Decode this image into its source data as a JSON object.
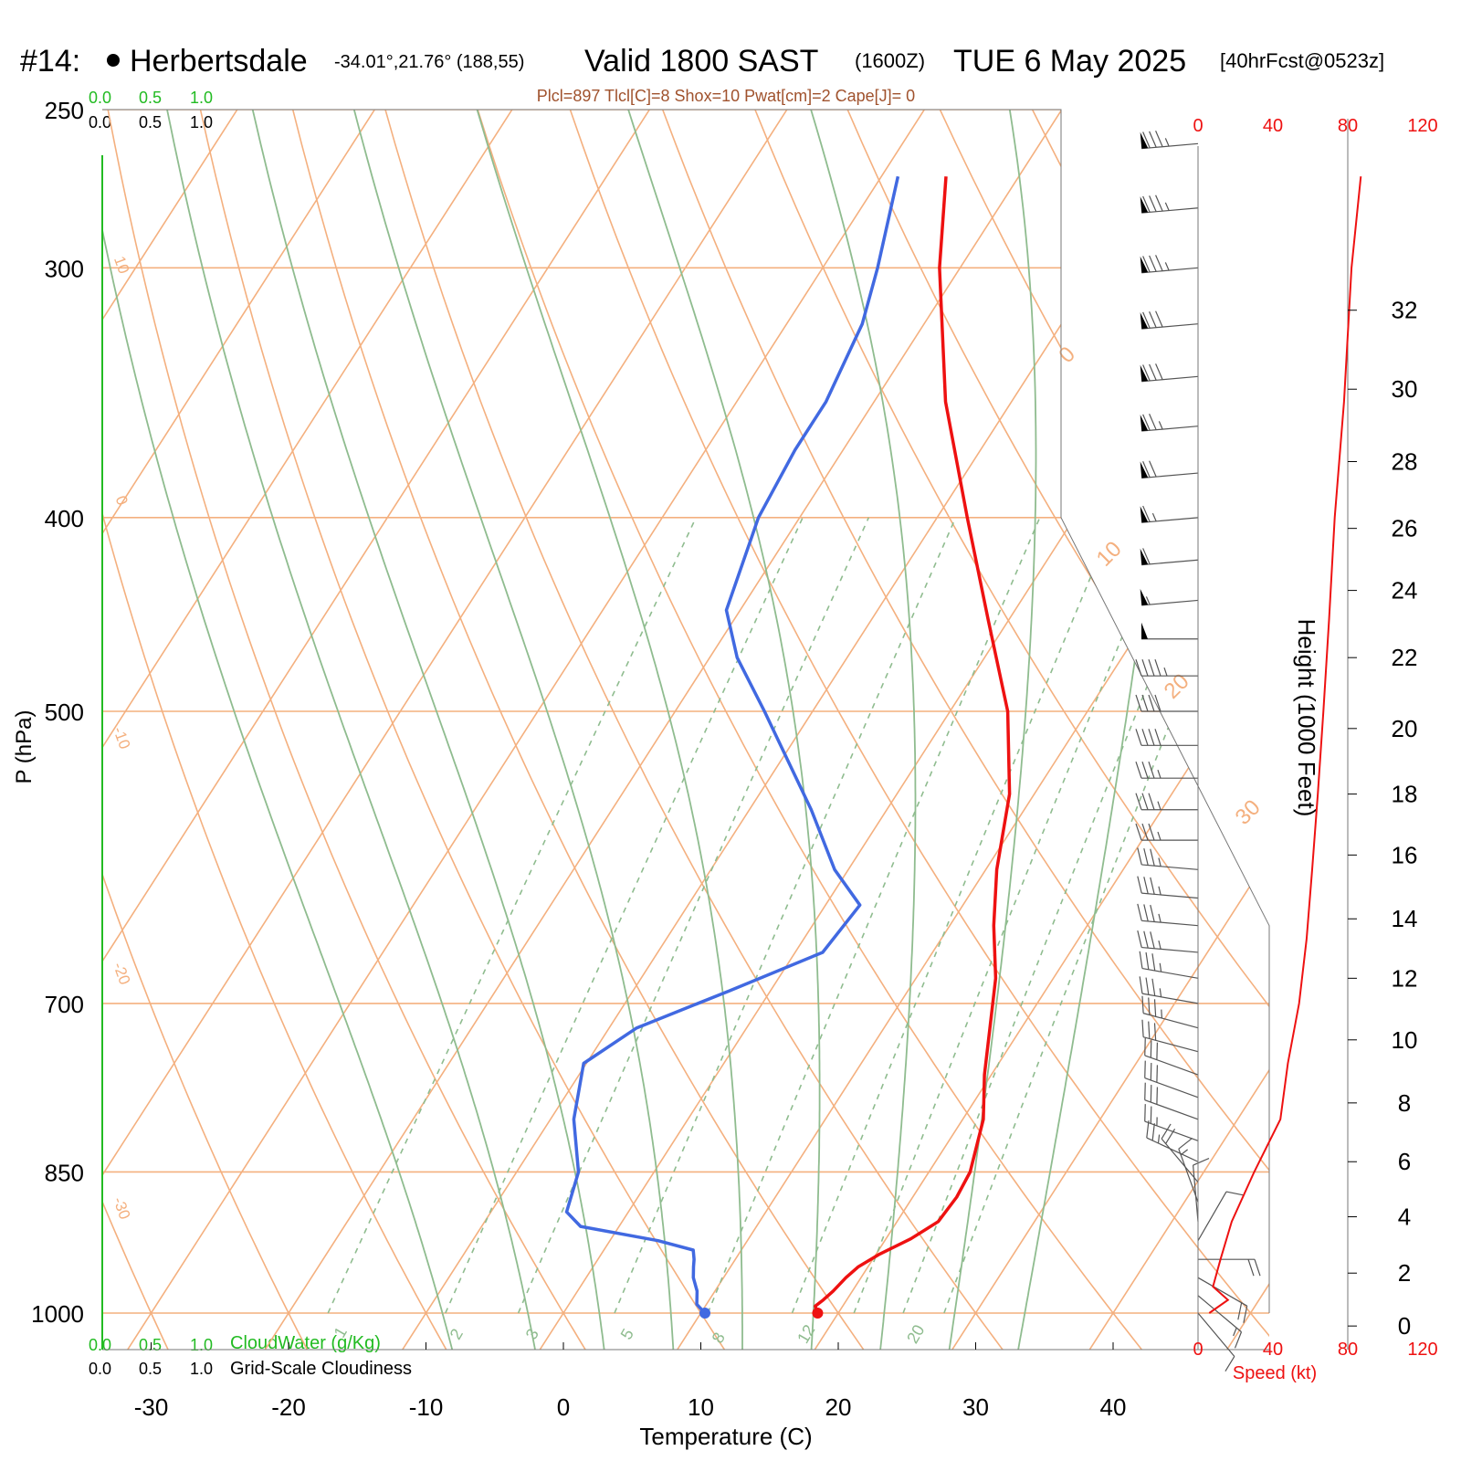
{
  "header": {
    "station_id": "#14:",
    "station_name": "Herbertsdale",
    "coords": "-34.01°,21.76° (188,55)",
    "valid": "Valid 1800 SAST",
    "zulu": "(1600Z)",
    "date": "TUE 6 May 2025",
    "forecast": "[40hrFcst@0523z]"
  },
  "indices": "Plcl=897 Tlcl[C]=8 Shox=10 Pwat[cm]=2 Cape[J]= 0",
  "colors": {
    "temperature": "#ee1111",
    "dewpoint": "#4169e1",
    "isotherm": "#f4b07f",
    "dry_adiabat": "#f4b07f",
    "moist_adiabat": "#8fbc8f",
    "mixing_ratio": "#8fbc8f",
    "speed": "#ee1111",
    "cloudwater": "#22bb22",
    "indices": "#a0522d"
  },
  "scales": {
    "cloud_top_green": [
      "0.0",
      "0.5",
      "1.0"
    ],
    "cloud_top_black": [
      "0.0",
      "0.5",
      "1.0"
    ],
    "cloud_bottom_green": [
      "0.0",
      "0.5",
      "1.0"
    ],
    "cloud_bottom_black": [
      "0.0",
      "0.5",
      "1.0"
    ],
    "cloudwater_label": "CloudWater (g/Kg)",
    "cloudiness_label": "Grid-Scale Cloudiness",
    "speed_ticks": [
      "0",
      "40",
      "80",
      "120"
    ],
    "speed_label": "Speed (kt)"
  },
  "chart_data": {
    "type": "line",
    "xlabel": "Temperature (C)",
    "ylabel": "P (hPa)",
    "right_label": "Height (1000 Feet)",
    "xlim": [
      -33,
      47
    ],
    "pressure_range": [
      250,
      1050
    ],
    "x_ticks": [
      "-30",
      "-20",
      "-10",
      "0",
      "10",
      "20",
      "30",
      "40"
    ],
    "x_tick_values": [
      -30,
      -20,
      -10,
      0,
      10,
      20,
      30,
      40
    ],
    "pressure_ticks": [
      "250",
      "300",
      "400",
      "500",
      "700",
      "850",
      "1000"
    ],
    "pressure_tick_values": [
      250,
      300,
      400,
      500,
      700,
      850,
      1000
    ],
    "height_ticks": [
      "0",
      "2",
      "4",
      "6",
      "8",
      "10",
      "12",
      "14",
      "16",
      "18",
      "20",
      "22",
      "24",
      "26",
      "28",
      "30",
      "32"
    ],
    "height_tick_pressures": [
      1015,
      955,
      895,
      840,
      785,
      730,
      680,
      635,
      590,
      550,
      510,
      470,
      435,
      405,
      375,
      345,
      315
    ],
    "dry_adiabat_labels": [
      "10",
      "0",
      "-10",
      "-20",
      "-30",
      "0",
      "10",
      "20",
      "30"
    ],
    "moist_adiabat_labels": [
      "8",
      "12",
      "20"
    ],
    "mixing_ratio_labels": [
      "1",
      "2",
      "3",
      "5"
    ],
    "temperature_series": {
      "p": [
        1000,
        992,
        985,
        975,
        960,
        948,
        935,
        918,
        900,
        875,
        850,
        800,
        760,
        720,
        680,
        640,
        600,
        550,
        500,
        450,
        400,
        350,
        300,
        270
      ],
      "t": [
        18.5,
        18.0,
        18.3,
        18.6,
        18.9,
        19.3,
        20.2,
        21.8,
        23.0,
        23.2,
        23.0,
        21.5,
        19.5,
        17.7,
        15.8,
        13.2,
        10.8,
        8.2,
        4.2,
        -1.5,
        -7.8,
        -14.8,
        -21.5,
        -25.3
      ]
    },
    "dewpoint_series": {
      "p": [
        1000,
        990,
        975,
        960,
        948,
        940,
        930,
        920,
        905,
        890,
        850,
        800,
        750,
        720,
        690,
        660,
        625,
        600,
        560,
        500,
        470,
        445,
        400,
        370,
        350,
        320,
        300,
        270
      ]
    },
    "dewpoint_values": [
      10.3,
      9.3,
      8.7,
      7.8,
      7.3,
      7.0,
      6.5,
      3.5,
      -2.8,
      -4.5,
      -5.5,
      -8.3,
      -10.2,
      -8.0,
      -3.0,
      2.0,
      2.5,
      -1.0,
      -5.5,
      -13.5,
      -18.0,
      -21.0,
      -23.0,
      -23.5,
      -23.5,
      -24.5,
      -26.0,
      -28.8
    ],
    "wind_pressures": [
      260,
      280,
      300,
      320,
      340,
      360,
      380,
      400,
      420,
      440,
      460,
      480,
      500,
      520,
      540,
      560,
      580,
      600,
      620,
      640,
      660,
      680,
      700,
      720,
      740,
      760,
      780,
      800,
      820,
      840,
      860,
      880,
      900,
      920,
      940,
      960,
      980,
      1000
    ],
    "wind_directions": [
      265,
      265,
      265,
      265,
      265,
      265,
      265,
      265,
      265,
      265,
      270,
      270,
      270,
      270,
      270,
      270,
      270,
      275,
      275,
      275,
      275,
      280,
      280,
      285,
      285,
      290,
      290,
      290,
      290,
      295,
      320,
      340,
      355,
      30,
      90,
      120,
      130,
      140
    ],
    "wind_speeds": [
      85,
      85,
      85,
      80,
      80,
      75,
      70,
      65,
      60,
      55,
      50,
      45,
      40,
      40,
      35,
      35,
      35,
      35,
      35,
      35,
      35,
      35,
      35,
      35,
      30,
      30,
      30,
      30,
      25,
      25,
      20,
      15,
      10,
      10,
      20,
      20,
      15,
      10
    ],
    "speed_profile_pressures": [
      270,
      300,
      350,
      400,
      450,
      500,
      550,
      600,
      650,
      700,
      750,
      800,
      850,
      900,
      940,
      970,
      985,
      1000
    ],
    "speed_profile_values": [
      87,
      82,
      78,
      73,
      70,
      67,
      64,
      61,
      58,
      54,
      48,
      44,
      30,
      18,
      12,
      8,
      16,
      6
    ]
  }
}
